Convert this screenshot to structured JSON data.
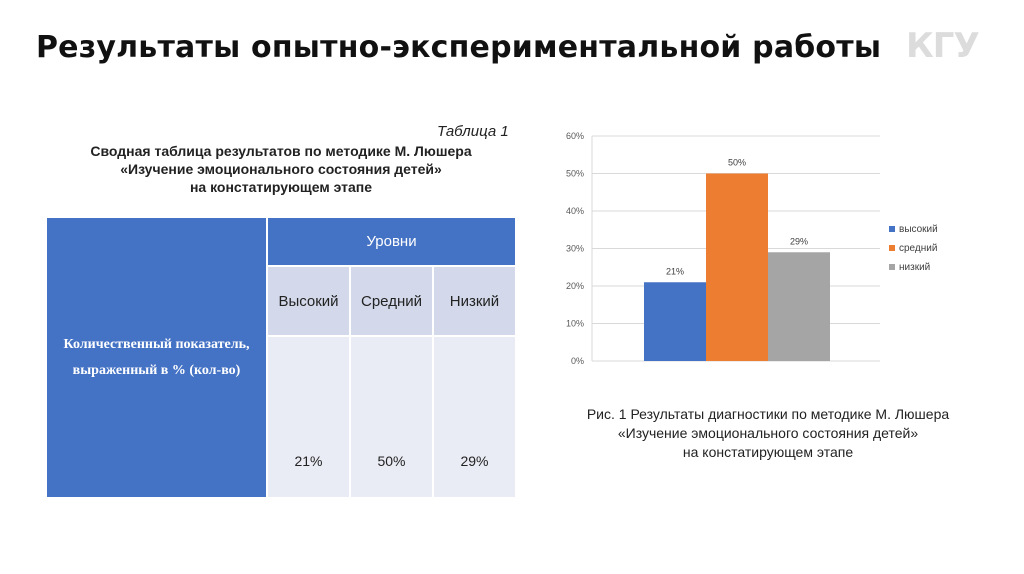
{
  "title": "Результаты опытно-экспериментальной работы",
  "logo_text": "КГУ",
  "table": {
    "label": "Таблица 1",
    "heading_lines": [
      "Сводная таблица результатов по методике М. Люшера",
      "«Изучение эмоционального состояния детей»",
      "на констатирующем этапе"
    ],
    "row_header": "Количественный показатель, выраженный в % (кол-во)",
    "levels_header": "Уровни",
    "columns": [
      "Высокий",
      "Средний",
      "Низкий"
    ],
    "values": [
      "21%",
      "50%",
      "29%"
    ]
  },
  "chart_data": {
    "type": "bar",
    "categories": [
      "высокий",
      "средний",
      "низкий"
    ],
    "values": [
      21,
      50,
      29
    ],
    "data_labels": [
      "21%",
      "50%",
      "29%"
    ],
    "colors": [
      "#4472c4",
      "#ed7d31",
      "#a5a5a5"
    ],
    "ylim": [
      0,
      60
    ],
    "yticks": [
      "0%",
      "10%",
      "20%",
      "30%",
      "40%",
      "50%",
      "60%"
    ],
    "grid": true,
    "legend_placement": "right",
    "title": "",
    "xlabel": "",
    "ylabel": ""
  },
  "caption_lines": [
    "Рис. 1 Результаты диагностики по методике М. Люшера",
    "«Изучение эмоционального состояния детей»",
    "на констатирующем этапе"
  ]
}
